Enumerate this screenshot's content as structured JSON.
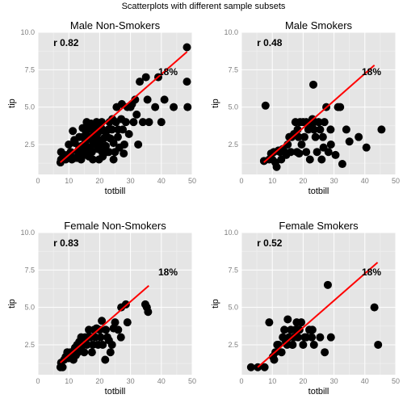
{
  "figure_title": "Scatterplots with different sample subsets",
  "chart_data": [
    {
      "type": "scatter",
      "title": "Male Non-Smokers",
      "xlabel": "totbill",
      "ylabel": "tip",
      "xlim": [
        0,
        50
      ],
      "ylim": [
        0.5,
        10
      ],
      "xticks": [
        0,
        10,
        20,
        30,
        40,
        50
      ],
      "yticks": [
        2.5,
        5.0,
        7.5,
        10.0
      ],
      "correlation_label": "r 0.82",
      "tip_rate_label": "18%",
      "line_color": "#ff0000",
      "point_color": "#000000",
      "fit_line": {
        "x": [
          7.25,
          48.33
        ],
        "y": [
          1.3,
          8.7
        ]
      },
      "points": [
        [
          7.3,
          1.3
        ],
        [
          7.5,
          1.5
        ],
        [
          7.5,
          2.0
        ],
        [
          8.5,
          1.8
        ],
        [
          9.0,
          1.5
        ],
        [
          9.6,
          1.8
        ],
        [
          10.3,
          1.6
        ],
        [
          10.6,
          2.0
        ],
        [
          11.0,
          1.5
        ],
        [
          11.3,
          3.4
        ],
        [
          12.0,
          1.6
        ],
        [
          12.0,
          2.6
        ],
        [
          12.7,
          1.6
        ],
        [
          13.0,
          2.0
        ],
        [
          13.3,
          2.2
        ],
        [
          13.4,
          3.0
        ],
        [
          14.0,
          1.5
        ],
        [
          14.1,
          2.4
        ],
        [
          14.5,
          3.0
        ],
        [
          14.5,
          3.6
        ],
        [
          15.0,
          1.8
        ],
        [
          15.2,
          2.0
        ],
        [
          15.3,
          2.6
        ],
        [
          15.5,
          3.4
        ],
        [
          16.0,
          2.2
        ],
        [
          16.0,
          2.9
        ],
        [
          16.2,
          3.5
        ],
        [
          16.5,
          1.7
        ],
        [
          16.9,
          2.3
        ],
        [
          17.0,
          3.0
        ],
        [
          17.2,
          3.9
        ],
        [
          17.5,
          2.0
        ],
        [
          17.8,
          2.7
        ],
        [
          18.2,
          3.2
        ],
        [
          18.3,
          3.6
        ],
        [
          18.5,
          2.5
        ],
        [
          18.8,
          3.0
        ],
        [
          19.0,
          4.0
        ],
        [
          19.4,
          2.2
        ],
        [
          19.5,
          3.3
        ],
        [
          20.0,
          2.8
        ],
        [
          20.3,
          2.5
        ],
        [
          20.5,
          3.6
        ],
        [
          20.7,
          4.0
        ],
        [
          21.0,
          1.7
        ],
        [
          21.3,
          2.9
        ],
        [
          21.5,
          3.4
        ],
        [
          22.0,
          2.4
        ],
        [
          22.5,
          3.0
        ],
        [
          22.8,
          3.5
        ],
        [
          23.0,
          2.0
        ],
        [
          23.2,
          4.0
        ],
        [
          23.5,
          2.9
        ],
        [
          24.0,
          3.5
        ],
        [
          24.1,
          4.2
        ],
        [
          24.5,
          2.6
        ],
        [
          25.0,
          2.0
        ],
        [
          25.3,
          4.0
        ],
        [
          25.5,
          5.0
        ],
        [
          25.9,
          3.0
        ],
        [
          26.4,
          2.3
        ],
        [
          27.0,
          4.2
        ],
        [
          27.2,
          5.2
        ],
        [
          27.5,
          3.5
        ],
        [
          28.0,
          2.5
        ],
        [
          28.5,
          4.0
        ],
        [
          29.0,
          5.0
        ],
        [
          30.0,
          5.0
        ],
        [
          30.5,
          5.2
        ],
        [
          31.0,
          4.0
        ],
        [
          31.5,
          5.5
        ],
        [
          32.0,
          4.5
        ],
        [
          33.0,
          6.7
        ],
        [
          34.0,
          4.0
        ],
        [
          35.0,
          7.0
        ],
        [
          35.5,
          5.5
        ],
        [
          36.0,
          4.0
        ],
        [
          38.0,
          5.0
        ],
        [
          39.0,
          7.0
        ],
        [
          40.0,
          4.0
        ],
        [
          41.0,
          5.5
        ],
        [
          44.0,
          5.0
        ],
        [
          48.3,
          9.0
        ],
        [
          48.3,
          6.7
        ],
        [
          48.5,
          5.0
        ],
        [
          16.5,
          2.0
        ],
        [
          13.8,
          2.0
        ],
        [
          11.8,
          2.8
        ],
        [
          17.8,
          1.5
        ],
        [
          20.8,
          2.0
        ],
        [
          24.5,
          1.5
        ],
        [
          22.3,
          2.0
        ],
        [
          19.8,
          1.5
        ],
        [
          10.0,
          2.5
        ],
        [
          26.0,
          3.5
        ],
        [
          29.5,
          3.2
        ],
        [
          32.5,
          2.5
        ],
        [
          27.8,
          1.9
        ],
        [
          18.8,
          3.8
        ],
        [
          15.8,
          4.0
        ]
      ]
    },
    {
      "type": "scatter",
      "title": "Male Smokers",
      "xlabel": "totbill",
      "ylabel": "tip",
      "xlim": [
        0,
        50
      ],
      "ylim": [
        0.5,
        10
      ],
      "xticks": [
        0,
        10,
        20,
        30,
        40,
        50
      ],
      "yticks": [
        2.5,
        5.0,
        7.5,
        10.0
      ],
      "correlation_label": "r 0.48",
      "tip_rate_label": "18%",
      "line_color": "#ff0000",
      "point_color": "#000000",
      "fit_line": {
        "x": [
          7.25,
          43.11
        ],
        "y": [
          1.3,
          7.8
        ]
      },
      "points": [
        [
          7.3,
          1.4
        ],
        [
          7.8,
          5.1
        ],
        [
          9.0,
          1.5
        ],
        [
          9.6,
          1.9
        ],
        [
          10.0,
          1.5
        ],
        [
          10.5,
          2.0
        ],
        [
          11.0,
          1.3
        ],
        [
          11.4,
          1.0
        ],
        [
          12.0,
          2.1
        ],
        [
          12.5,
          2.0
        ],
        [
          12.9,
          1.5
        ],
        [
          13.4,
          2.2
        ],
        [
          14.0,
          2.0
        ],
        [
          14.5,
          1.8
        ],
        [
          15.0,
          2.5
        ],
        [
          15.5,
          3.0
        ],
        [
          16.0,
          2.0
        ],
        [
          16.3,
          3.0
        ],
        [
          17.0,
          3.2
        ],
        [
          17.5,
          4.0
        ],
        [
          18.0,
          2.0
        ],
        [
          18.2,
          3.5
        ],
        [
          18.5,
          3.0
        ],
        [
          19.0,
          4.0
        ],
        [
          19.5,
          2.5
        ],
        [
          20.0,
          4.0
        ],
        [
          20.4,
          3.0
        ],
        [
          21.0,
          4.0
        ],
        [
          21.0,
          2.0
        ],
        [
          21.7,
          3.5
        ],
        [
          22.2,
          1.5
        ],
        [
          22.5,
          4.0
        ],
        [
          23.0,
          4.2
        ],
        [
          23.3,
          6.5
        ],
        [
          23.5,
          3.5
        ],
        [
          24.0,
          3.0
        ],
        [
          24.5,
          2.0
        ],
        [
          25.0,
          4.0
        ],
        [
          25.5,
          3.5
        ],
        [
          26.0,
          1.5
        ],
        [
          26.4,
          3.0
        ],
        [
          26.9,
          4.0
        ],
        [
          27.5,
          5.0
        ],
        [
          28.2,
          2.0
        ],
        [
          28.9,
          3.5
        ],
        [
          29.0,
          2.5
        ],
        [
          30.5,
          1.8
        ],
        [
          31.3,
          5.0
        ],
        [
          32.0,
          5.0
        ],
        [
          32.7,
          1.2
        ],
        [
          34.0,
          3.5
        ],
        [
          35.0,
          2.7
        ],
        [
          38.0,
          3.0
        ],
        [
          40.5,
          2.3
        ],
        [
          45.4,
          3.5
        ],
        [
          23.1,
          3.9
        ],
        [
          18.7,
          1.9
        ],
        [
          26.6,
          2.3
        ]
      ]
    },
    {
      "type": "scatter",
      "title": "Female Non-Smokers",
      "xlabel": "totbill",
      "ylabel": "tip",
      "xlim": [
        0,
        50
      ],
      "ylim": [
        0.5,
        10
      ],
      "xticks": [
        0,
        10,
        20,
        30,
        40,
        50
      ],
      "yticks": [
        2.5,
        5.0,
        7.5,
        10.0
      ],
      "correlation_label": "r 0.83",
      "tip_rate_label": "18%",
      "line_color": "#ff0000",
      "point_color": "#000000",
      "fit_line": {
        "x": [
          7.25,
          35.94
        ],
        "y": [
          1.3,
          6.45
        ]
      },
      "points": [
        [
          7.3,
          1.0
        ],
        [
          7.5,
          1.3
        ],
        [
          8.0,
          1.0
        ],
        [
          8.5,
          1.5
        ],
        [
          9.0,
          1.7
        ],
        [
          9.5,
          2.0
        ],
        [
          10.0,
          1.6
        ],
        [
          10.3,
          1.8
        ],
        [
          10.6,
          2.0
        ],
        [
          11.0,
          2.0
        ],
        [
          11.5,
          1.5
        ],
        [
          12.0,
          2.3
        ],
        [
          12.3,
          1.8
        ],
        [
          12.7,
          2.5
        ],
        [
          13.0,
          2.0
        ],
        [
          13.4,
          2.7
        ],
        [
          13.9,
          2.3
        ],
        [
          14.0,
          3.0
        ],
        [
          14.5,
          2.5
        ],
        [
          15.0,
          2.0
        ],
        [
          15.3,
          3.0
        ],
        [
          15.9,
          2.5
        ],
        [
          16.2,
          3.0
        ],
        [
          16.5,
          3.5
        ],
        [
          17.0,
          3.0
        ],
        [
          17.5,
          2.0
        ],
        [
          17.8,
          2.5
        ],
        [
          18.2,
          3.5
        ],
        [
          18.6,
          3.0
        ],
        [
          19.0,
          3.6
        ],
        [
          19.5,
          2.5
        ],
        [
          20.0,
          3.5
        ],
        [
          20.3,
          3.0
        ],
        [
          20.7,
          4.1
        ],
        [
          21.0,
          2.5
        ],
        [
          22.0,
          3.5
        ],
        [
          22.5,
          3.0
        ],
        [
          23.0,
          2.8
        ],
        [
          24.0,
          2.5
        ],
        [
          25.0,
          4.0
        ],
        [
          26.0,
          3.5
        ],
        [
          27.0,
          5.0
        ],
        [
          28.5,
          5.2
        ],
        [
          29.0,
          4.0
        ],
        [
          34.8,
          5.2
        ],
        [
          35.3,
          5.0
        ],
        [
          35.7,
          4.7
        ],
        [
          24.5,
          3.6
        ],
        [
          11.2,
          1.8
        ],
        [
          23.5,
          2.0
        ],
        [
          21.8,
          1.5
        ],
        [
          26.9,
          3.0
        ]
      ]
    },
    {
      "type": "scatter",
      "title": "Female Smokers",
      "xlabel": "totbill",
      "ylabel": "tip",
      "xlim": [
        0,
        50
      ],
      "ylim": [
        0.5,
        10
      ],
      "xticks": [
        0,
        10,
        20,
        30,
        40,
        50
      ],
      "yticks": [
        2.5,
        5.0,
        7.5,
        10.0
      ],
      "correlation_label": "r 0.52",
      "tip_rate_label": "18%",
      "line_color": "#ff0000",
      "point_color": "#000000",
      "fit_line": {
        "x": [
          5.28,
          44.13
        ],
        "y": [
          1.0,
          8.0
        ]
      },
      "points": [
        [
          3.1,
          1.0
        ],
        [
          5.3,
          1.0
        ],
        [
          7.5,
          1.0
        ],
        [
          9.0,
          4.0
        ],
        [
          10.2,
          1.7
        ],
        [
          10.6,
          1.5
        ],
        [
          11.0,
          2.0
        ],
        [
          11.6,
          2.5
        ],
        [
          12.0,
          2.5
        ],
        [
          13.0,
          2.0
        ],
        [
          13.4,
          3.0
        ],
        [
          13.9,
          3.5
        ],
        [
          14.4,
          2.7
        ],
        [
          14.8,
          2.5
        ],
        [
          15.0,
          4.2
        ],
        [
          15.4,
          3.0
        ],
        [
          16.0,
          3.5
        ],
        [
          16.5,
          2.5
        ],
        [
          17.0,
          3.0
        ],
        [
          17.5,
          3.5
        ],
        [
          17.9,
          4.0
        ],
        [
          18.3,
          3.0
        ],
        [
          18.8,
          3.5
        ],
        [
          19.4,
          4.0
        ],
        [
          20.0,
          2.5
        ],
        [
          20.5,
          3.0
        ],
        [
          21.0,
          3.0
        ],
        [
          22.0,
          3.5
        ],
        [
          23.0,
          3.5
        ],
        [
          23.5,
          2.5
        ],
        [
          25.5,
          3.0
        ],
        [
          27.0,
          2.0
        ],
        [
          28.0,
          6.5
        ],
        [
          29.0,
          3.0
        ],
        [
          43.1,
          5.0
        ],
        [
          44.3,
          2.5
        ],
        [
          16.6,
          2.5
        ],
        [
          22.8,
          3.0
        ]
      ]
    }
  ]
}
